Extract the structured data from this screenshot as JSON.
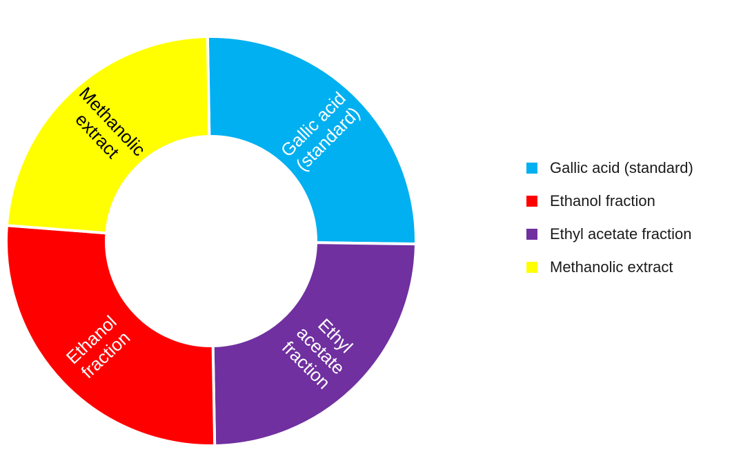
{
  "chart_data": {
    "type": "pie",
    "style": "donut",
    "title": "",
    "slices": [
      {
        "name": "Gallic acid (standard)",
        "value": 25.5,
        "color": "#00B0F0",
        "label_lines": [
          "Gallic acid",
          "(standard)"
        ],
        "label_color": "#ffffff"
      },
      {
        "name": "Ethyl acetate fraction",
        "value": 24.5,
        "color": "#7030A0",
        "label_lines": [
          "Ethyl",
          "acetate",
          "fraction"
        ],
        "label_color": "#ffffff"
      },
      {
        "name": "Ethanol fraction",
        "value": 26.5,
        "color": "#FF0000",
        "label_lines": [
          "Ethanol",
          "fraction"
        ],
        "label_color": "#ffffff"
      },
      {
        "name": "Methanolic extract",
        "value": 23.5,
        "color": "#FFFF00",
        "label_lines": [
          "Methanolic",
          "extract"
        ],
        "label_color": "#000000"
      }
    ],
    "legend": {
      "position": "right",
      "items": [
        {
          "label": "Gallic acid (standard)",
          "color": "#00B0F0"
        },
        {
          "label": "Ethanol fraction",
          "color": "#FF0000"
        },
        {
          "label": "Ethyl acetate fraction",
          "color": "#7030A0"
        },
        {
          "label": "Methanolic extract",
          "color": "#FFFF00"
        }
      ]
    }
  }
}
